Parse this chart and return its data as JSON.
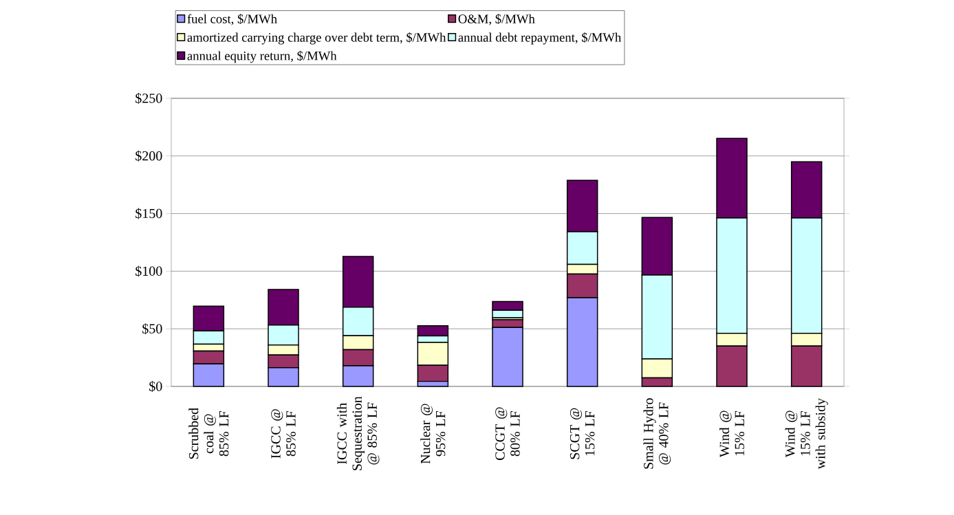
{
  "chart_data": {
    "type": "bar",
    "stacked": true,
    "legend": "top",
    "grid": "y",
    "categories": [
      "Scrubbed coal @ 85% LF",
      "IGCC @ 85% LF",
      "IGCC with Sequestration @ 85% LF",
      "Nuclear @ 95% LF",
      "CCGT @ 80% LF",
      "SCGT @ 15% LF",
      "Small Hydro @ 40% LF",
      "Wind @ 15% LF",
      "Wind @ 15% LF with subsidy"
    ],
    "series": [
      {
        "name": "fuel cost, $/MWh",
        "color": "#9999ff",
        "values": [
          19.5,
          16.3,
          17.9,
          4.4,
          51.1,
          77.0,
          0,
          0,
          0
        ]
      },
      {
        "name": "O&M, $/MWh",
        "color": "#993366",
        "values": [
          11.2,
          11.0,
          14.0,
          13.9,
          6.8,
          20.6,
          7.4,
          35.0,
          35.0
        ]
      },
      {
        "name": "amortized carrying charge over debt term, $/MWh",
        "color": "#ffffcc",
        "values": [
          6.0,
          8.6,
          12.1,
          19.9,
          1.6,
          8.3,
          16.5,
          11.1,
          11.1
        ]
      },
      {
        "name": "annual debt repayment, $/MWh",
        "color": "#ccffff",
        "values": [
          11.5,
          17.3,
          24.7,
          5.6,
          6.6,
          28.4,
          72.7,
          100.1,
          100.1
        ]
      },
      {
        "name": "annual equity return, $/MWh",
        "color": "#660066",
        "values": [
          21.5,
          30.9,
          44.0,
          8.8,
          7.6,
          44.5,
          50.0,
          69.0,
          48.8
        ]
      }
    ],
    "ylim": [
      0,
      250
    ],
    "yticks": [
      {
        "value": 0,
        "label": "$0"
      },
      {
        "value": 50,
        "label": "$50"
      },
      {
        "value": 100,
        "label": "$100"
      },
      {
        "value": 150,
        "label": "$150"
      },
      {
        "value": 200,
        "label": "$200"
      },
      {
        "value": 250,
        "label": "$250"
      }
    ]
  }
}
